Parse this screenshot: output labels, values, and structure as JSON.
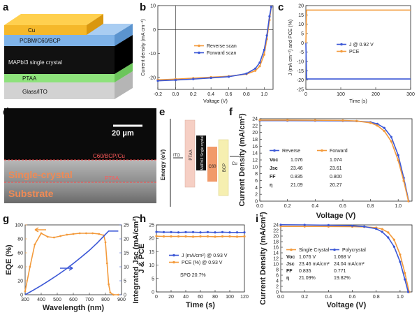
{
  "colors": {
    "orange": "#f39a3b",
    "blue": "#3b57d6",
    "cu": "#f5b82a",
    "pcbm": "#7fb3e8",
    "black": "#111111",
    "ptaa": "#8ee27c",
    "glass": "#d2d2d2",
    "ito_box": "#f6cfc4",
    "cbox": "#f19a6a",
    "bcp_box": "#f6efb0"
  },
  "panel_labels": {
    "a": "a",
    "b": "b",
    "c": "c",
    "d": "d",
    "e": "e",
    "f": "f",
    "g": "g",
    "h": "h",
    "i": "i"
  },
  "panel_a": {
    "layers": [
      "Cu",
      "PCBM/C60/BCP",
      "MAPbI3 single crystal",
      "PTAA",
      "Glass/ITO"
    ]
  },
  "panel_d": {
    "scale_bar": "20 μm",
    "iface": "C60/BCP/Cu",
    "single": "Single-crystal",
    "ptaa": "PTAA",
    "substrate": "Substrate"
  },
  "panel_e": {
    "ylabel": "Energy (eV)",
    "labels": [
      "ITO",
      "PTAA",
      "MAPbI3 Single crystal",
      "C60",
      "BCP",
      "Cu"
    ]
  },
  "chart_data": [
    {
      "panel": "b",
      "type": "line",
      "xlabel": "Voltage (V)",
      "ylabel": "Current density (mA cm⁻²)",
      "xlim": [
        -0.2,
        1.1
      ],
      "ylim": [
        -25,
        10
      ],
      "xticks": [
        -0.2,
        0.0,
        0.2,
        0.4,
        0.6,
        0.8,
        1.0
      ],
      "yticks": [
        -20,
        -10,
        0,
        10
      ],
      "series": [
        {
          "name": "Reverse scan",
          "color": "#f39a3b",
          "x": [
            -0.2,
            0.0,
            0.2,
            0.4,
            0.6,
            0.8,
            0.9,
            0.95,
            1.0,
            1.03,
            1.06,
            1.08
          ],
          "y": [
            -21.0,
            -20.7,
            -20.3,
            -19.9,
            -19.5,
            -18.6,
            -17.2,
            -15.3,
            -10.5,
            -4.0,
            4.0,
            9.5
          ]
        },
        {
          "name": "Forward scan",
          "color": "#3b57d6",
          "x": [
            -0.2,
            0.0,
            0.2,
            0.4,
            0.6,
            0.8,
            0.9,
            0.95,
            1.0,
            1.03,
            1.06,
            1.08
          ],
          "y": [
            -21.4,
            -21.1,
            -20.7,
            -20.2,
            -19.7,
            -18.4,
            -16.3,
            -13.8,
            -8.5,
            -2.5,
            5.5,
            9.5
          ]
        }
      ]
    },
    {
      "panel": "c",
      "type": "line",
      "xlabel": "Time (s)",
      "ylabel": "J (mA cm⁻²) and PCE (%)",
      "xlim": [
        0,
        300
      ],
      "ylim": [
        -25,
        20
      ],
      "xticks": [
        0,
        100,
        200,
        300
      ],
      "yticks": [
        -25,
        -20,
        -15,
        -10,
        -5,
        0,
        5,
        10,
        15,
        20
      ],
      "series": [
        {
          "name": "J @ 0.92 V",
          "color": "#3b57d6",
          "x": [
            0,
            2,
            300
          ],
          "y": [
            0,
            -19.4,
            -19.4
          ]
        },
        {
          "name": "PCE",
          "color": "#f39a3b",
          "x": [
            0,
            2,
            300
          ],
          "y": [
            0,
            17.6,
            17.6
          ]
        }
      ]
    },
    {
      "panel": "f",
      "type": "line",
      "xlabel": "Voltage (V)",
      "ylabel": "Current Density (mA/cm²)",
      "xlim": [
        0,
        1.1
      ],
      "ylim": [
        0,
        24
      ],
      "xticks": [
        0.0,
        0.2,
        0.4,
        0.6,
        0.8,
        1.0
      ],
      "yticks": [
        0,
        2,
        4,
        6,
        8,
        10,
        12,
        14,
        16,
        18,
        20,
        22,
        24
      ],
      "series": [
        {
          "name": "Reverse",
          "color": "#3b57d6",
          "x": [
            0,
            0.2,
            0.4,
            0.6,
            0.7,
            0.8,
            0.85,
            0.9,
            0.95,
            1.0,
            1.04,
            1.076
          ],
          "y": [
            23.46,
            23.45,
            23.43,
            23.38,
            23.3,
            23.0,
            22.5,
            21.3,
            18.7,
            13.4,
            6.8,
            0
          ]
        },
        {
          "name": "Forward",
          "color": "#f39a3b",
          "x": [
            0,
            0.2,
            0.4,
            0.6,
            0.7,
            0.8,
            0.85,
            0.9,
            0.95,
            1.0,
            1.04,
            1.074
          ],
          "y": [
            23.61,
            23.6,
            23.57,
            23.5,
            23.35,
            22.8,
            22.0,
            20.4,
            17.4,
            11.9,
            5.9,
            0
          ]
        }
      ],
      "table": {
        "rows": [
          "Voc",
          "Jsc",
          "FF",
          "η"
        ],
        "reverse": [
          "1.076",
          "23.46",
          "0.835",
          "21.09"
        ],
        "forward": [
          "1.074",
          "23.61",
          "0.800",
          "20.27"
        ]
      }
    },
    {
      "panel": "g",
      "type": "line",
      "xlabel": "Wavelength (nm)",
      "ylabel": "EQE (%)",
      "ylabel2": "Integrated Jsc (mA/cm²)",
      "xlim": [
        300,
        900
      ],
      "ylim": [
        0,
        100
      ],
      "ylim2": [
        0,
        25
      ],
      "xticks": [
        300,
        400,
        500,
        600,
        700,
        800,
        900
      ],
      "yticks": [
        0,
        20,
        40,
        60,
        80,
        100
      ],
      "yticks2": [
        0,
        5,
        10,
        15,
        20,
        25
      ],
      "series": [
        {
          "name": "EQE",
          "color": "#f39a3b",
          "x": [
            300,
            330,
            360,
            400,
            440,
            480,
            520,
            560,
            600,
            640,
            680,
            720,
            760,
            790,
            800,
            810,
            820,
            830,
            850,
            880
          ],
          "y": [
            5,
            40,
            72,
            88,
            83,
            82,
            84,
            86,
            87,
            88,
            88,
            88,
            87,
            85,
            75,
            45,
            15,
            3,
            0,
            0
          ]
        },
        {
          "name": "Integrated Jsc",
          "color": "#3b57d6",
          "axis": "right",
          "x": [
            300,
            350,
            400,
            450,
            500,
            550,
            600,
            650,
            700,
            750,
            800,
            820,
            880
          ],
          "y": [
            0,
            1.6,
            3.3,
            5.1,
            7.0,
            9.0,
            11.2,
            13.5,
            15.9,
            18.6,
            21.6,
            22.8,
            22.8
          ]
        }
      ]
    },
    {
      "panel": "h",
      "type": "line",
      "xlabel": "Time (s)",
      "ylabel": "J & PCE",
      "xlim": [
        0,
        120
      ],
      "ylim": [
        0,
        25
      ],
      "xticks": [
        0,
        20,
        40,
        60,
        80,
        100,
        120
      ],
      "yticks": [
        0,
        5,
        10,
        15,
        20,
        25
      ],
      "annotation": "SPO 20.7%",
      "series": [
        {
          "name": "J (mA/cm²) @ 0.93 V",
          "color": "#3b57d6",
          "x": [
            0,
            10,
            20,
            30,
            40,
            50,
            60,
            70,
            80,
            90,
            100,
            110,
            120
          ],
          "y": [
            22.4,
            22.3,
            22.3,
            22.2,
            22.3,
            22.3,
            22.2,
            22.3,
            22.2,
            22.3,
            22.2,
            22.2,
            22.2
          ]
        },
        {
          "name": "PCE (%) @ 0.93 V",
          "color": "#f39a3b",
          "x": [
            0,
            10,
            20,
            30,
            40,
            50,
            60,
            70,
            80,
            90,
            100,
            110,
            120
          ],
          "y": [
            20.8,
            20.7,
            20.7,
            20.7,
            20.7,
            20.6,
            20.7,
            20.7,
            20.6,
            20.7,
            20.7,
            20.6,
            20.7
          ]
        }
      ]
    },
    {
      "panel": "i",
      "type": "line",
      "xlabel": "Voltage (V)",
      "ylabel": "Current Density (mA/cm²)",
      "xlim": [
        0,
        1.1
      ],
      "ylim": [
        0,
        24
      ],
      "xticks": [
        0.0,
        0.2,
        0.4,
        0.6,
        0.8,
        1.0
      ],
      "yticks": [
        0,
        2,
        4,
        6,
        8,
        10,
        12,
        14,
        16,
        18,
        20,
        22,
        24
      ],
      "series": [
        {
          "name": "Single Crystal",
          "color": "#f39a3b",
          "x": [
            0,
            0.2,
            0.4,
            0.6,
            0.7,
            0.8,
            0.85,
            0.9,
            0.95,
            1.0,
            1.04,
            1.076
          ],
          "y": [
            23.46,
            23.45,
            23.43,
            23.38,
            23.3,
            23.0,
            22.5,
            21.3,
            18.7,
            13.4,
            6.8,
            0
          ]
        },
        {
          "name": "Polycrystal",
          "color": "#3b57d6",
          "x": [
            0,
            0.2,
            0.4,
            0.6,
            0.7,
            0.8,
            0.85,
            0.9,
            0.95,
            1.0,
            1.04,
            1.068
          ],
          "y": [
            24.04,
            24.0,
            23.9,
            23.7,
            23.4,
            22.6,
            21.5,
            19.5,
            16.2,
            10.8,
            4.5,
            0
          ]
        }
      ],
      "table": {
        "rows": [
          "Voc",
          "Jsc",
          "FF",
          "η"
        ],
        "single": [
          "1.076 V",
          "23.46 mA/cm²",
          "0.835",
          "21.09%"
        ],
        "poly": [
          "1.068 V",
          "24.04 mA/cm²",
          "0.771",
          "19.82%"
        ]
      }
    }
  ]
}
